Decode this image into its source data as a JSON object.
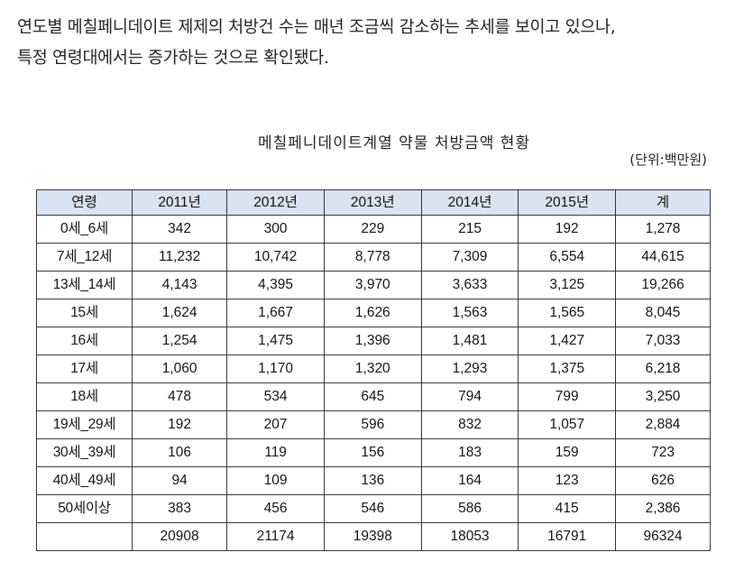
{
  "article": {
    "line1": "연도별 메칠페니데이트 제제의 처방건 수는 매년 조금씩 감소하는 추세를 보이고 있으나,",
    "line2": "특정 연령대에서는 증가하는 것으로 확인됐다."
  },
  "table": {
    "title": "메칠페니데이트계열 약물 처방금액 현황",
    "unit": "(단위:백만원)",
    "headers": [
      "연령",
      "2011년",
      "2012년",
      "2013년",
      "2014년",
      "2015년",
      "계"
    ],
    "rows": [
      [
        "0세_6세",
        "342",
        "300",
        "229",
        "215",
        "192",
        "1,278"
      ],
      [
        "7세_12세",
        "11,232",
        "10,742",
        "8,778",
        "7,309",
        "6,554",
        "44,615"
      ],
      [
        "13세_14세",
        "4,143",
        "4,395",
        "3,970",
        "3,633",
        "3,125",
        "19,266"
      ],
      [
        "15세",
        "1,624",
        "1,667",
        "1,626",
        "1,563",
        "1,565",
        "8,045"
      ],
      [
        "16세",
        "1,254",
        "1,475",
        "1,396",
        "1,481",
        "1,427",
        "7,033"
      ],
      [
        "17세",
        "1,060",
        "1,170",
        "1,320",
        "1,293",
        "1,375",
        "6,218"
      ],
      [
        "18세",
        "478",
        "534",
        "645",
        "794",
        "799",
        "3,250"
      ],
      [
        "19세_29세",
        "192",
        "207",
        "596",
        "832",
        "1,057",
        "2,884"
      ],
      [
        "30세_39세",
        "106",
        "119",
        "156",
        "183",
        "159",
        "723"
      ],
      [
        "40세_49세",
        "94",
        "109",
        "136",
        "164",
        "123",
        "626"
      ],
      [
        "50세이상",
        "383",
        "456",
        "546",
        "586",
        "415",
        "2,386"
      ],
      [
        "",
        "20908",
        "21174",
        "19398",
        "18053",
        "16791",
        "96324"
      ]
    ]
  },
  "colors": {
    "header_bg": "#d9e3f1",
    "border": "#333333",
    "text": "#222222"
  }
}
